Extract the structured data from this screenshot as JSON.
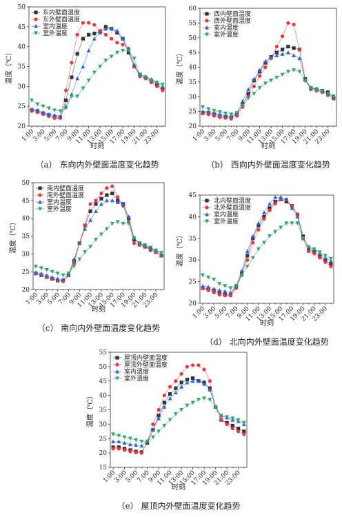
{
  "chart_data": [
    {
      "type": "line",
      "caption": "（a） 东向内外壁面温度变化趋势",
      "xlabel": "时刻",
      "ylabel": "温度（℃）",
      "categories": [
        "1:00",
        null,
        "3:00",
        null,
        "5:00",
        null,
        "7:00",
        null,
        "9:00",
        null,
        "11:00",
        null,
        "13:00",
        null,
        "15:00",
        null,
        "17:00",
        null,
        "19:00",
        null,
        "21:00",
        null,
        "23:00",
        null
      ],
      "ylim": [
        20,
        50
      ],
      "yticks": [
        20,
        25,
        30,
        35,
        40,
        45,
        50
      ],
      "series": [
        {
          "name": "东内壁面温度",
          "color": "#333333",
          "marker": "square",
          "values": [
            24,
            23.8,
            23.2,
            22.8,
            22.3,
            22.2,
            26.5,
            32.3,
            38.2,
            42,
            43,
            43.3,
            43.8,
            45,
            44.5,
            43.5,
            42,
            38.5,
            35,
            33,
            32.2,
            31.5,
            30.5,
            29.3
          ]
        },
        {
          "name": "东外壁面温度",
          "color": "#e8383d",
          "marker": "circle",
          "values": [
            23.8,
            23.5,
            23,
            22.5,
            22,
            22,
            29,
            36,
            43,
            46,
            46,
            45.5,
            44,
            43,
            42,
            41,
            40.5,
            39.5,
            35,
            32.5,
            32,
            31,
            30,
            29
          ]
        },
        {
          "name": "室内温度",
          "color": "#2d63d8",
          "marker": "triangle-up",
          "values": [
            24.3,
            24,
            23.5,
            23,
            22.8,
            22.5,
            25,
            28,
            32,
            35,
            39,
            42,
            43.5,
            44.5,
            44.5,
            44,
            42,
            39.5,
            35.5,
            33,
            32.5,
            31.8,
            31,
            30
          ]
        },
        {
          "name": "室外温度",
          "color": "#2ea56a",
          "marker": "triangle-down",
          "values": [
            26.5,
            25.5,
            25,
            24.5,
            24,
            23.8,
            24.5,
            27.5,
            27.5,
            29.5,
            31.5,
            33.5,
            35,
            36.5,
            37.5,
            38.5,
            39,
            39,
            37,
            33,
            32.3,
            31.5,
            31,
            30.5
          ]
        }
      ]
    },
    {
      "type": "line",
      "caption": "（b） 西向内外壁面温度变化趋势",
      "xlabel": "时刻",
      "ylabel": "温度（℃）",
      "categories": [
        "1:00",
        null,
        "3:00",
        null,
        "5:00",
        null,
        "7:00",
        null,
        "9:00",
        null,
        "11:00",
        null,
        "13:00",
        null,
        "15:00",
        null,
        "17:00",
        null,
        "19:00",
        null,
        "21:00",
        null,
        "23:00",
        null
      ],
      "ylim": [
        20,
        60
      ],
      "yticks": [
        20,
        25,
        30,
        35,
        40,
        45,
        50,
        55,
        60
      ],
      "series": [
        {
          "name": "西内壁面温度",
          "color": "#333333",
          "marker": "square",
          "values": [
            24.5,
            24.5,
            24,
            23.5,
            23.2,
            23,
            24,
            27.5,
            31,
            35.5,
            38.5,
            41.5,
            43.5,
            45,
            46,
            47,
            46.5,
            46,
            36,
            33,
            32.5,
            32,
            31.5,
            29.5
          ]
        },
        {
          "name": "西外壁面温度",
          "color": "#e8383d",
          "marker": "circle",
          "values": [
            24.3,
            24,
            23.5,
            23,
            22.8,
            22.5,
            23.5,
            26.5,
            30,
            33.5,
            37,
            40,
            43,
            47,
            50.5,
            55,
            54.5,
            46,
            35.5,
            32.5,
            32,
            31.5,
            30.5,
            29.3
          ]
        },
        {
          "name": "室内温度",
          "color": "#2d63d8",
          "marker": "triangle-up",
          "values": [
            25,
            25,
            24.5,
            24,
            23.5,
            23.3,
            24.5,
            28.5,
            32.5,
            36,
            39,
            42,
            43.5,
            44,
            44.5,
            45,
            44,
            43,
            36,
            33,
            32.5,
            32,
            31,
            30
          ]
        },
        {
          "name": "室外温度",
          "color": "#2ea56a",
          "marker": "triangle-down",
          "values": [
            26.5,
            25.8,
            25.2,
            24.8,
            24.3,
            24,
            24.5,
            27,
            29.5,
            31,
            33,
            34.5,
            35.5,
            36.5,
            37.5,
            38.5,
            39,
            38.5,
            35.5,
            33,
            32.3,
            31.8,
            31,
            30.2
          ]
        }
      ]
    },
    {
      "type": "line",
      "caption": "（c） 南向内外壁面温度变化趋势",
      "xlabel": "时刻",
      "ylabel": "温度（℃）",
      "categories": [
        "1:00",
        null,
        "3:00",
        null,
        "5:00",
        null,
        "7:00",
        null,
        "9:00",
        null,
        "11:00",
        null,
        "13:00",
        null,
        "15:00",
        null,
        "17:00",
        null,
        "19:00",
        null,
        "21:00",
        null,
        "23:00",
        null
      ],
      "ylim": [
        20,
        50
      ],
      "yticks": [
        20,
        25,
        30,
        35,
        40,
        45,
        50
      ],
      "series": [
        {
          "name": "南内壁面温度",
          "color": "#333333",
          "marker": "square",
          "values": [
            24.5,
            24,
            23.5,
            23,
            22.5,
            22.5,
            24,
            28,
            33,
            38,
            42,
            44,
            45.5,
            46.5,
            47,
            45,
            44,
            40,
            34,
            33,
            32,
            31.5,
            30.5,
            29.5
          ]
        },
        {
          "name": "南外壁面温度",
          "color": "#e8383d",
          "marker": "circle",
          "values": [
            24.5,
            24,
            23.5,
            23,
            22.5,
            22.3,
            24,
            27.5,
            33,
            38,
            44,
            45,
            47,
            48.5,
            49,
            46,
            43.5,
            39,
            33,
            32.5,
            32,
            31,
            30.5,
            29.5
          ]
        },
        {
          "name": "室内温度",
          "color": "#2d63d8",
          "marker": "triangle-up",
          "values": [
            24.8,
            24.5,
            24,
            23.5,
            23,
            22.8,
            24.5,
            28.5,
            33,
            37,
            39.5,
            42,
            44,
            45,
            45,
            44.5,
            44,
            40.5,
            34.5,
            33,
            32.3,
            31.5,
            31,
            30
          ]
        },
        {
          "name": "室外温度",
          "color": "#2ea56a",
          "marker": "triangle-down",
          "values": [
            26.5,
            26,
            25.5,
            25,
            24.5,
            24,
            24.5,
            26.5,
            28.5,
            30.5,
            32,
            34,
            35.5,
            37,
            38.5,
            39,
            38.5,
            38.5,
            34.5,
            33,
            32.5,
            31.8,
            31,
            30.3
          ]
        }
      ]
    },
    {
      "type": "line",
      "caption": "（d） 北向内外壁面温度变化趋势",
      "xlabel": "时刻",
      "ylabel": "温度（℃）",
      "categories": [
        "1:00",
        null,
        "3:00",
        null,
        "5:00",
        null,
        "7:00",
        null,
        "9:00",
        null,
        "11:00",
        null,
        "13:00",
        null,
        "15:00",
        null,
        "17:00",
        null,
        "19:00",
        null,
        "21:00",
        null,
        "23:00",
        null
      ],
      "ylim": [
        20,
        45
      ],
      "yticks": [
        20,
        25,
        30,
        35,
        40,
        45
      ],
      "series": [
        {
          "name": "北内壁面温度",
          "color": "#333333",
          "marker": "square",
          "values": [
            23.5,
            23.3,
            23,
            22.5,
            22,
            22,
            24,
            27,
            31,
            35,
            38,
            40,
            42,
            43.5,
            44,
            43.5,
            42.5,
            40.5,
            35.5,
            32.5,
            32,
            31,
            30,
            29
          ]
        },
        {
          "name": "北外壁面温度",
          "color": "#e8383d",
          "marker": "circle",
          "values": [
            23.5,
            23,
            22.5,
            22,
            21.8,
            21.8,
            23.5,
            26.5,
            30,
            34,
            37,
            39.5,
            41.5,
            43,
            44,
            44,
            42.5,
            40.5,
            35,
            32,
            31.5,
            30.5,
            29.5,
            28.5
          ]
        },
        {
          "name": "室内温度",
          "color": "#2d63d8",
          "marker": "triangle-up",
          "values": [
            24,
            23.8,
            23.3,
            23,
            22.8,
            22.5,
            24,
            27.5,
            32,
            35.5,
            38.5,
            41,
            43,
            44.5,
            44.5,
            44,
            42,
            40,
            35,
            33,
            32.5,
            31.5,
            30.5,
            29.8
          ]
        },
        {
          "name": "室外温度",
          "color": "#2ea56a",
          "marker": "triangle-down",
          "values": [
            26.5,
            26,
            25.5,
            24.5,
            24,
            23.5,
            24,
            26.5,
            28.5,
            30.5,
            32.5,
            34,
            35.5,
            36.5,
            37.5,
            38.5,
            38.5,
            38.5,
            35,
            33,
            32.5,
            31.8,
            31,
            30.3
          ]
        }
      ]
    },
    {
      "type": "line",
      "caption": "（e） 屋顶内外壁面温度变化趋势",
      "xlabel": "时刻",
      "ylabel": "温度（℃）",
      "categories": [
        "1:00",
        null,
        "3:00",
        null,
        "5:00",
        null,
        "7:00",
        null,
        "9:00",
        null,
        "11:00",
        null,
        "13:00",
        null,
        "15:00",
        null,
        "17:00",
        null,
        "19:00",
        null,
        "21:00",
        null,
        "23:00",
        null
      ],
      "ylim": [
        15,
        55
      ],
      "yticks": [
        15,
        20,
        25,
        30,
        35,
        40,
        45,
        50,
        55
      ],
      "series": [
        {
          "name": "屋顶内壁面温度",
          "color": "#333333",
          "marker": "square",
          "values": [
            22,
            22,
            21.5,
            21,
            20.5,
            20.3,
            23.5,
            28,
            33,
            37.5,
            40.5,
            42.5,
            44.5,
            45.5,
            46,
            45,
            44.5,
            42.5,
            36,
            31.5,
            30.5,
            29.5,
            28.5,
            27.5
          ]
        },
        {
          "name": "屋顶外壁面温度",
          "color": "#e8383d",
          "marker": "circle",
          "values": [
            21.5,
            21.5,
            21,
            20.5,
            20.2,
            20,
            24,
            30,
            35,
            40,
            43,
            45,
            47.5,
            50,
            50.5,
            50.5,
            49,
            45,
            36,
            31.5,
            30,
            28.5,
            27.5,
            26.5
          ]
        },
        {
          "name": "室内温度",
          "color": "#2d63d8",
          "marker": "triangle-up",
          "values": [
            24,
            24,
            23.5,
            23,
            22.8,
            22.5,
            24,
            28,
            32,
            36,
            39,
            41,
            43,
            44.5,
            45,
            45,
            44,
            42,
            36,
            33,
            32.3,
            31.5,
            31,
            30
          ]
        },
        {
          "name": "室外温度",
          "color": "#2ea56a",
          "marker": "triangle-down",
          "values": [
            26.5,
            26,
            25.5,
            25,
            24.5,
            24,
            24,
            25.5,
            27.5,
            29.5,
            31.5,
            33.5,
            35,
            36.5,
            37.5,
            38.5,
            39,
            38.5,
            36,
            33,
            32.5,
            32,
            31.5,
            30.5
          ]
        }
      ]
    }
  ]
}
